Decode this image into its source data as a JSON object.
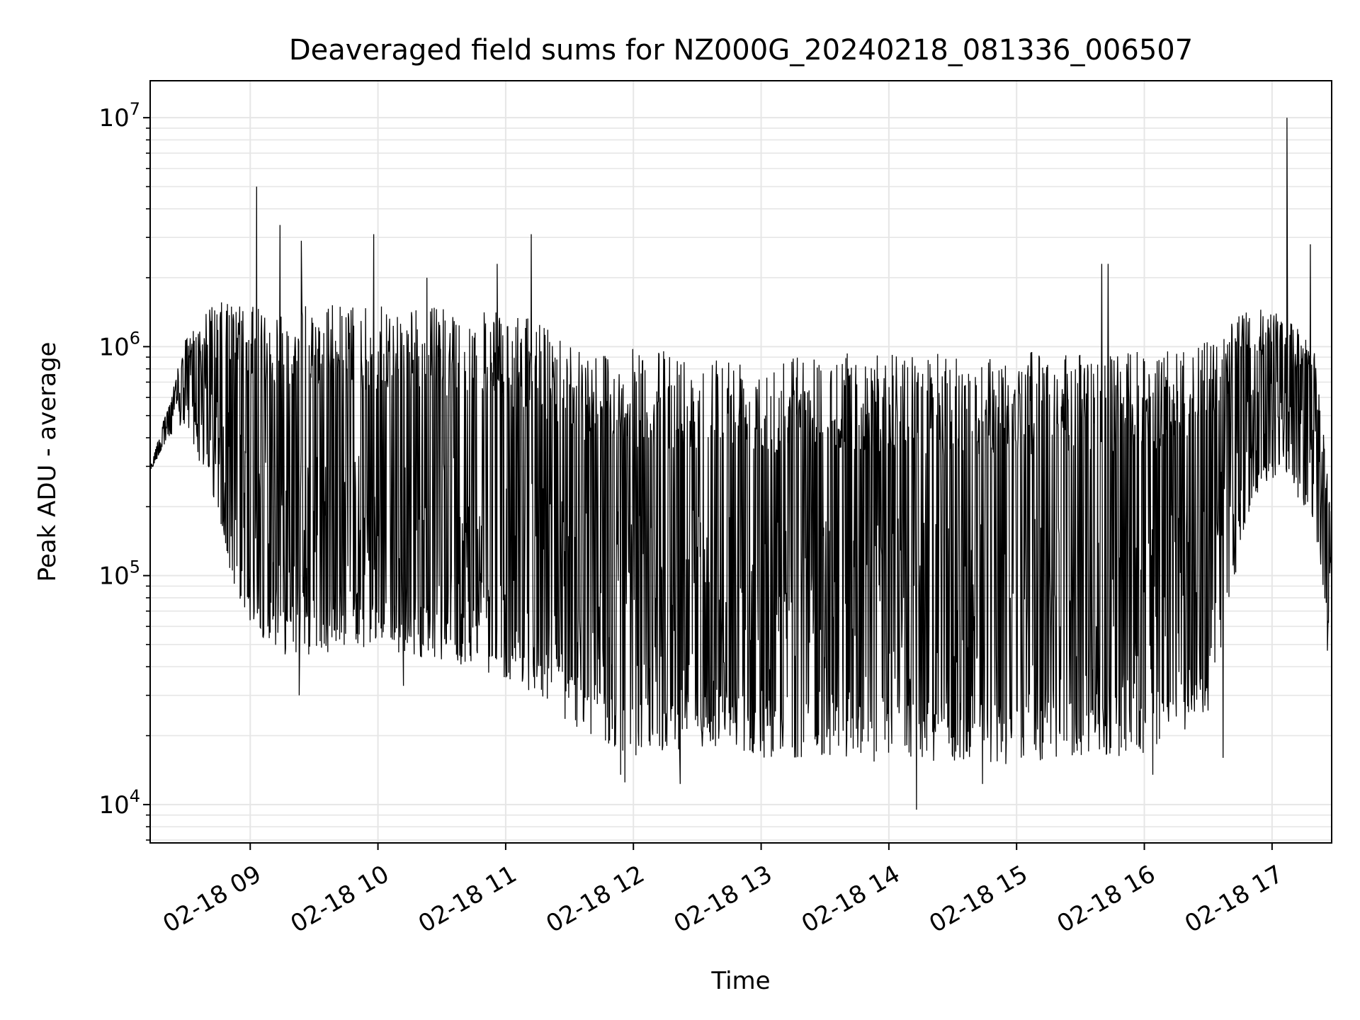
{
  "chart_data": {
    "type": "line",
    "title": "Deaveraged field sums for NZ000G_20240218_081336_006507",
    "xlabel": "Time",
    "ylabel": "Peak ADU - average",
    "yscale": "log",
    "grid": true,
    "line_color": "#000000",
    "grid_color": "#e6e6e6",
    "xlim": [
      "02-18 08:13",
      "02-18 17:28"
    ],
    "ylim": [
      6800,
      14500000
    ],
    "x_ticks": [
      {
        "value": "02-18 09:00",
        "label": "02-18 09"
      },
      {
        "value": "02-18 10:00",
        "label": "02-18 10"
      },
      {
        "value": "02-18 11:00",
        "label": "02-18 11"
      },
      {
        "value": "02-18 12:00",
        "label": "02-18 12"
      },
      {
        "value": "02-18 13:00",
        "label": "02-18 13"
      },
      {
        "value": "02-18 14:00",
        "label": "02-18 14"
      },
      {
        "value": "02-18 15:00",
        "label": "02-18 15"
      },
      {
        "value": "02-18 16:00",
        "label": "02-18 16"
      },
      {
        "value": "02-18 17:00",
        "label": "02-18 17"
      }
    ],
    "y_ticks": [
      {
        "value": 10000,
        "base": "10",
        "exp": "4"
      },
      {
        "value": 100000,
        "base": "10",
        "exp": "5"
      },
      {
        "value": 1000000,
        "base": "10",
        "exp": "6"
      },
      {
        "value": 10000000,
        "base": "10",
        "exp": "7"
      }
    ],
    "series_envelope": {
      "description_of_fields": "x, upper, lower in data units",
      "x": [
        "02-18 08:13",
        "02-18 08:20",
        "02-18 08:30",
        "02-18 08:40",
        "02-18 08:50",
        "02-18 09:00",
        "02-18 09:15",
        "02-18 09:30",
        "02-18 09:45",
        "02-18 10:00",
        "02-18 10:15",
        "02-18 10:30",
        "02-18 10:45",
        "02-18 11:00",
        "02-18 11:15",
        "02-18 11:30",
        "02-18 11:45",
        "02-18 12:00",
        "02-18 12:30",
        "02-18 13:00",
        "02-18 13:30",
        "02-18 14:00",
        "02-18 14:30",
        "02-18 15:00",
        "02-18 15:30",
        "02-18 16:00",
        "02-18 16:30",
        "02-18 16:50",
        "02-18 17:05",
        "02-18 17:20",
        "02-18 17:28"
      ],
      "upper": [
        300000,
        500000,
        1100000,
        1500000,
        1600000,
        1500000,
        1500000,
        1550000,
        1550000,
        1500000,
        1500000,
        1500000,
        1450000,
        1400000,
        1300000,
        1100000,
        1000000,
        980000,
        950000,
        950000,
        950000,
        950000,
        930000,
        950000,
        950000,
        950000,
        1050000,
        1500000,
        1400000,
        1000000,
        200000
      ],
      "lower": [
        280000,
        380000,
        450000,
        250000,
        100000,
        60000,
        45000,
        45000,
        48000,
        45000,
        45000,
        42000,
        40000,
        35000,
        30000,
        22000,
        18000,
        16000,
        18000,
        16000,
        16000,
        15000,
        15000,
        15000,
        16000,
        16000,
        25000,
        200000,
        300000,
        150000,
        50000
      ]
    },
    "spikes": [
      {
        "x": "02-18 09:03",
        "y": 5000000
      },
      {
        "x": "02-18 09:14",
        "y": 3400000
      },
      {
        "x": "02-18 09:24",
        "y": 2900000
      },
      {
        "x": "02-18 09:58",
        "y": 3100000
      },
      {
        "x": "02-18 10:23",
        "y": 2000000
      },
      {
        "x": "02-18 10:56",
        "y": 2300000
      },
      {
        "x": "02-18 11:12",
        "y": 3100000
      },
      {
        "x": "02-18 15:40",
        "y": 2300000
      },
      {
        "x": "02-18 15:43",
        "y": 2300000
      },
      {
        "x": "02-18 17:07",
        "y": 10000000
      },
      {
        "x": "02-18 17:18",
        "y": 2800000
      }
    ],
    "dips": [
      {
        "x": "02-18 09:23",
        "y": 30000
      },
      {
        "x": "02-18 10:12",
        "y": 33000
      },
      {
        "x": "02-18 11:54",
        "y": 13500
      },
      {
        "x": "02-18 11:56",
        "y": 12500
      },
      {
        "x": "02-18 12:22",
        "y": 12300
      },
      {
        "x": "02-18 14:13",
        "y": 9500
      },
      {
        "x": "02-18 14:44",
        "y": 12300
      },
      {
        "x": "02-18 16:04",
        "y": 13500
      },
      {
        "x": "02-18 16:37",
        "y": 16000
      },
      {
        "x": "02-18 17:26",
        "y": 47000
      }
    ]
  }
}
